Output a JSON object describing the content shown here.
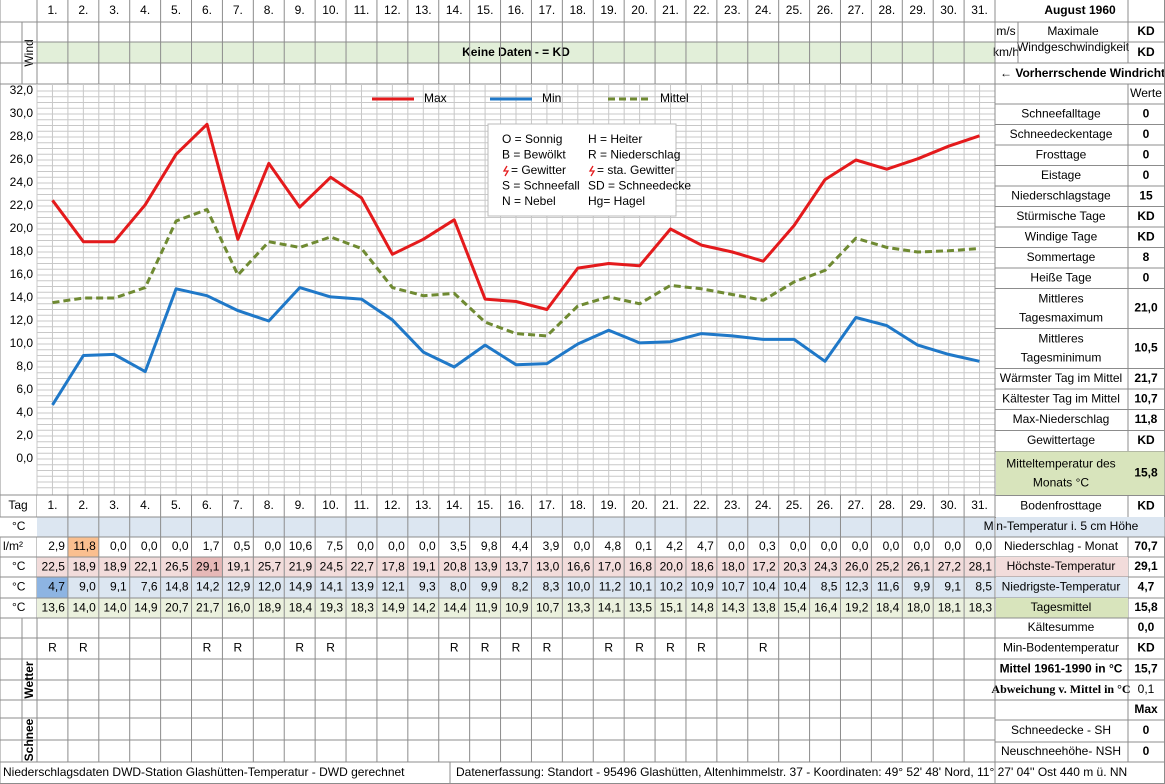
{
  "header": {
    "month": "August 1960"
  },
  "wind": {
    "label": "Wind",
    "unit_ms": "m/s",
    "unit_kmh": "km/h",
    "max_label": [
      "Maximale",
      "Windgeschwindigkeit"
    ],
    "max_ms": "KD",
    "max_kmh": "KD",
    "no_data": "Keine Daten -  = KD",
    "direction": "← Vorherrschende Windrichtung"
  },
  "chart_data": {
    "type": "line",
    "categories": [
      "1.",
      "2.",
      "3.",
      "4.",
      "5.",
      "6.",
      "7.",
      "8.",
      "9.",
      "10.",
      "11.",
      "12.",
      "13.",
      "14.",
      "15.",
      "16.",
      "17.",
      "18.",
      "19.",
      "20.",
      "21.",
      "22.",
      "23.",
      "24.",
      "25.",
      "26.",
      "27.",
      "28.",
      "29.",
      "30.",
      "31."
    ],
    "ylim": [
      0,
      32
    ],
    "yticks": [
      {
        "value": 0,
        "label": "0,0"
      },
      {
        "value": 2,
        "label": "2,0"
      },
      {
        "value": 4,
        "label": "4,0"
      },
      {
        "value": 6,
        "label": "6,0"
      },
      {
        "value": 8,
        "label": "8,0"
      },
      {
        "value": 10,
        "label": "10,0"
      },
      {
        "value": 12,
        "label": "12,0"
      },
      {
        "value": 14,
        "label": "14,0"
      },
      {
        "value": 16,
        "label": "16,0"
      },
      {
        "value": 18,
        "label": "18,0"
      },
      {
        "value": 20,
        "label": "20,0"
      },
      {
        "value": 22,
        "label": "22,0"
      },
      {
        "value": 24,
        "label": "24,0"
      },
      {
        "value": 26,
        "label": "26,0"
      },
      {
        "value": 28,
        "label": "28,0"
      },
      {
        "value": 30,
        "label": "30,0"
      },
      {
        "value": 32,
        "label": "32,0"
      }
    ],
    "grid": true,
    "legend_position": "top",
    "series": [
      {
        "name": "Max",
        "color": "#e41a1c",
        "values": [
          22.5,
          18.9,
          18.9,
          22.1,
          26.5,
          29.1,
          19.1,
          25.7,
          21.9,
          24.5,
          22.7,
          17.8,
          19.1,
          20.8,
          13.9,
          13.7,
          13.0,
          16.6,
          17.0,
          16.8,
          20.0,
          18.6,
          18.0,
          17.2,
          20.3,
          24.3,
          26.0,
          25.2,
          26.1,
          27.2,
          28.1
        ],
        "value_labels": [
          "22,5",
          "18,9",
          "18,9",
          "22,1",
          "26,5",
          "29,1",
          "19,1",
          "25,7",
          "21,9",
          "24,5",
          "22,7",
          "17,8",
          "19,1",
          "20,8",
          "13,9",
          "13,7",
          "13,0",
          "16,6",
          "17,0",
          "16,8",
          "20,0",
          "18,6",
          "18,0",
          "17,2",
          "20,3",
          "24,3",
          "26,0",
          "25,2",
          "26,1",
          "27,2",
          "28,1"
        ]
      },
      {
        "name": "Min",
        "color": "#1f78c8",
        "values": [
          4.7,
          9.0,
          9.1,
          7.6,
          14.8,
          14.2,
          12.9,
          12.0,
          14.9,
          14.1,
          13.9,
          12.1,
          9.3,
          8.0,
          9.9,
          8.2,
          8.3,
          10.0,
          11.2,
          10.1,
          10.2,
          10.9,
          10.7,
          10.4,
          10.4,
          8.5,
          12.3,
          11.6,
          9.9,
          9.1,
          8.5
        ],
        "value_labels": [
          "4,7",
          "9,0",
          "9,1",
          "7,6",
          "14,8",
          "14,2",
          "12,9",
          "12,0",
          "14,9",
          "14,1",
          "13,9",
          "12,1",
          "9,3",
          "8,0",
          "9,9",
          "8,2",
          "8,3",
          "10,0",
          "11,2",
          "10,1",
          "10,2",
          "10,9",
          "10,7",
          "10,4",
          "10,4",
          "8,5",
          "12,3",
          "11,6",
          "9,9",
          "9,1",
          "8,5"
        ]
      },
      {
        "name": "Mittel",
        "color": "#6f8a32",
        "dashed": true,
        "values": [
          13.6,
          14.0,
          14.0,
          14.9,
          20.7,
          21.7,
          16.0,
          18.9,
          18.4,
          19.3,
          18.3,
          14.9,
          14.2,
          14.4,
          11.9,
          10.9,
          10.7,
          13.3,
          14.1,
          13.5,
          15.1,
          14.8,
          14.3,
          13.8,
          15.4,
          16.4,
          19.2,
          18.4,
          18.0,
          18.1,
          18.3
        ],
        "value_labels": [
          "13,6",
          "14,0",
          "14,0",
          "14,9",
          "20,7",
          "21,7",
          "16,0",
          "18,9",
          "18,4",
          "19,3",
          "18,3",
          "14,9",
          "14,2",
          "14,4",
          "11,9",
          "10,9",
          "10,7",
          "13,3",
          "14,1",
          "13,5",
          "15,1",
          "14,8",
          "14,3",
          "13,8",
          "15,4",
          "16,4",
          "19,2",
          "18,4",
          "18,0",
          "18,1",
          "18,3"
        ]
      }
    ],
    "symbols": [
      "O = Sonnig",
      "H = Heiter",
      "B = Bewölkt",
      "R = Niederschlag",
      "= Gewitter",
      "= sta. Gewitter",
      "S = Schneefall",
      "SD = Schneedecke",
      "N = Nebel",
      "Hg= Hagel"
    ]
  },
  "table": {
    "day_label": "Tag",
    "row_units": [
      "°C",
      "l/m²",
      "°C",
      "°C",
      "°C"
    ],
    "precipitation": [
      "2,9",
      "11,8",
      "0,0",
      "0,0",
      "0,0",
      "1,7",
      "0,5",
      "0,0",
      "10,6",
      "7,5",
      "0,0",
      "0,0",
      "0,0",
      "3,5",
      "9,8",
      "4,4",
      "3,9",
      "0,0",
      "4,8",
      "0,1",
      "4,2",
      "4,7",
      "0,0",
      "0,3",
      "0,0",
      "0,0",
      "0,0",
      "0,0",
      "0,0",
      "0,0",
      "0,0"
    ]
  },
  "weather": {
    "label": "Wetter",
    "codes": [
      "R",
      "R",
      null,
      null,
      null,
      "R",
      "R",
      null,
      "R",
      "R",
      null,
      null,
      null,
      "R",
      "R",
      "R",
      "R",
      null,
      "R",
      "R",
      "R",
      "R",
      null,
      "R",
      null,
      null,
      null,
      null,
      null,
      null,
      null
    ]
  },
  "snow": {
    "label": "Schnee"
  },
  "summary": {
    "header": "Werte",
    "stats": [
      {
        "label": "Schneefalltage",
        "value": "0"
      },
      {
        "label": "Schneedeckentage",
        "value": "0"
      },
      {
        "label": "Frosttage",
        "value": "0"
      },
      {
        "label": "Eistage",
        "value": "0"
      },
      {
        "label": "Niederschlagstage",
        "value": "15"
      },
      {
        "label": "Stürmische Tage",
        "value": "KD"
      },
      {
        "label": "Windige Tage",
        "value": "KD"
      },
      {
        "label": "Sommertage",
        "value": "8"
      },
      {
        "label": "Heiße Tage",
        "value": "0"
      },
      {
        "label": [
          "Mittleres",
          "Tagesmaximum"
        ],
        "value": "21,0"
      },
      {
        "label": [
          "Mittleres",
          "Tagesminimum"
        ],
        "value": "10,5"
      },
      {
        "label": "Wärmster Tag im Mittel",
        "value": "21,7"
      },
      {
        "label": "Kältester Tag im Mittel",
        "value": "10,7"
      },
      {
        "label": "Max-Niederschlag",
        "value": "11,8"
      },
      {
        "label": "Gewittertage",
        "value": "KD"
      },
      {
        "label": [
          "Mitteltemperatur des",
          "Monats °C"
        ],
        "value": "15,8"
      },
      {
        "label": "Bodenfrosttage",
        "value": "KD"
      }
    ],
    "lower": [
      {
        "label": "Min-Temperatur i. 5 cm Höhe"
      },
      {
        "label": "Niederschlag - Monat",
        "value": "70,7"
      },
      {
        "label": "Höchste-Temperatur",
        "value": "29,1"
      },
      {
        "label": "Niedrigste-Temperatur",
        "value": "4,7"
      },
      {
        "label": "Tagesmittel",
        "value": "15,8"
      },
      {
        "label": "Kältesumme",
        "value": "0,0"
      },
      {
        "label": "Min-Bodentemperatur",
        "value": "KD"
      },
      {
        "label": "Mittel 1961-1990 in °C",
        "value": "15,7"
      },
      {
        "label": "Abweichung v. Mittel in °C",
        "value": "0,1"
      },
      {
        "label": "Schneedecke -  SH",
        "value": "0"
      },
      {
        "label": "Neuschneehöhe- NSH",
        "value": "0"
      }
    ],
    "max_header": "Max"
  },
  "footer": {
    "left": "Niederschlagsdaten DWD-Station Glashütten-Temperatur -  DWD gerechnet",
    "right": "Datenerfassung:  Standort -  95496  Glashütten, Altenhimmelstr. 37 - Koordinaten:  49° 52' 48' Nord,   11° 27' 04'' Ost   440 m ü. NN"
  }
}
